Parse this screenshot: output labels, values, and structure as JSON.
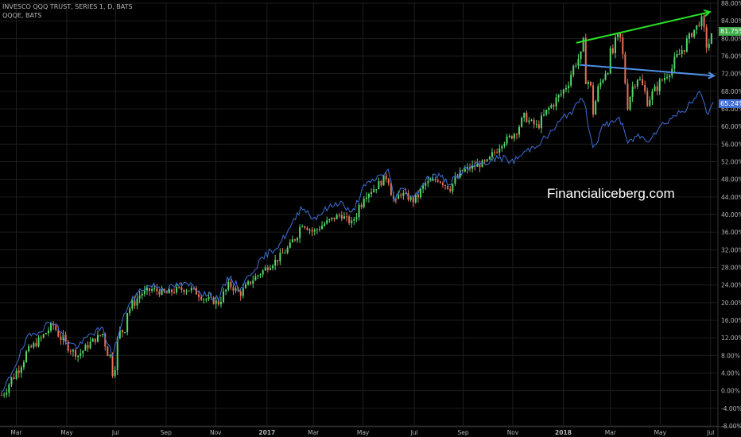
{
  "legend": {
    "main": "INVESCO QQQ TRUST, SERIES 1, D, BATS",
    "compare": "QQQE, BATS"
  },
  "watermark": "Financialiceberg.com",
  "last_values": {
    "main": "81.75%",
    "compare": "65.24%"
  },
  "colors": {
    "background": "#000000",
    "grid": "#1e1e1e",
    "up_candle": "#53d769",
    "down_candle": "#e8705a",
    "compare_line": "#3f6fd6",
    "trend_upper": "#27e227",
    "trend_lower": "#4f8fe6",
    "axis_text": "#b3b3b3",
    "main_badge": "#3fae4a",
    "compare_badge": "#3f6fd6"
  },
  "chart_data": {
    "type": "line",
    "title": "",
    "ylabel": "",
    "ylim": [
      -8,
      88
    ],
    "y_ticks": [
      "88.00%",
      "84.00%",
      "80.00%",
      "76.00%",
      "72.00%",
      "68.00%",
      "64.00%",
      "60.00%",
      "56.00%",
      "52.00%",
      "48.00%",
      "44.00%",
      "40.00%",
      "36.00%",
      "32.00%",
      "28.00%",
      "24.00%",
      "20.00%",
      "16.00%",
      "12.00%",
      "8.00%",
      "4.00%",
      "0.00%",
      "-4.00%",
      "-8.00%"
    ],
    "x_ticks": [
      "Mar",
      "May",
      "Jul",
      "Sep",
      "Nov",
      "2017",
      "Mar",
      "May",
      "Jul",
      "Sep",
      "Nov",
      "2018",
      "Mar",
      "May",
      "Jul"
    ],
    "x_tick_dates": [
      "2016-03-01",
      "2016-05-02",
      "2016-07-01",
      "2016-09-01",
      "2016-11-01",
      "2017-01-03",
      "2017-03-01",
      "2017-05-01",
      "2017-07-03",
      "2017-09-01",
      "2017-11-01",
      "2018-01-02",
      "2018-03-01",
      "2018-05-01",
      "2018-07-02"
    ],
    "series": [
      {
        "name": "INVESCO QQQ TRUST, SERIES 1",
        "style": "candles",
        "x": [
          "2016-02-12",
          "2016-02-29",
          "2016-03-15",
          "2016-04-01",
          "2016-04-15",
          "2016-05-02",
          "2016-05-16",
          "2016-06-01",
          "2016-06-15",
          "2016-06-27",
          "2016-07-15",
          "2016-08-01",
          "2016-08-15",
          "2016-09-01",
          "2016-09-15",
          "2016-10-03",
          "2016-10-17",
          "2016-11-04",
          "2016-11-18",
          "2016-12-01",
          "2016-12-15",
          "2017-01-03",
          "2017-01-17",
          "2017-02-01",
          "2017-02-15",
          "2017-03-01",
          "2017-03-15",
          "2017-04-03",
          "2017-04-17",
          "2017-05-01",
          "2017-05-15",
          "2017-06-01",
          "2017-06-09",
          "2017-06-15",
          "2017-07-03",
          "2017-07-17",
          "2017-08-01",
          "2017-08-15",
          "2017-09-01",
          "2017-09-15",
          "2017-10-02",
          "2017-10-16",
          "2017-11-01",
          "2017-11-15",
          "2017-12-01",
          "2017-12-15",
          "2018-01-02",
          "2018-01-16",
          "2018-01-26",
          "2018-02-08",
          "2018-02-20",
          "2018-03-12",
          "2018-03-23",
          "2018-04-02",
          "2018-04-16",
          "2018-05-01",
          "2018-05-15",
          "2018-06-01",
          "2018-06-12",
          "2018-06-20",
          "2018-06-28",
          "2018-07-06"
        ],
        "values": [
          -1,
          4,
          9,
          12,
          15,
          10,
          8,
          11,
          13,
          6,
          18,
          22,
          23,
          22,
          23,
          23,
          21,
          20,
          24,
          22,
          25,
          28,
          30,
          33,
          38,
          36,
          38,
          40,
          38,
          44,
          46,
          49,
          42,
          45,
          43,
          47,
          48,
          46,
          50,
          51,
          52,
          56,
          58,
          62,
          60,
          64,
          68,
          74,
          77,
          64,
          72,
          80,
          66,
          72,
          66,
          70,
          73,
          79,
          82,
          84,
          78,
          81.75
        ],
        "color_up": "#53d769",
        "color_down": "#e8705a"
      },
      {
        "name": "QQQE",
        "style": "line",
        "x": [
          "2016-02-12",
          "2016-02-29",
          "2016-03-15",
          "2016-04-01",
          "2016-04-15",
          "2016-05-02",
          "2016-05-16",
          "2016-06-01",
          "2016-06-15",
          "2016-06-27",
          "2016-07-15",
          "2016-08-01",
          "2016-08-15",
          "2016-09-01",
          "2016-09-15",
          "2016-10-03",
          "2016-10-17",
          "2016-11-04",
          "2016-11-18",
          "2016-12-01",
          "2016-12-15",
          "2017-01-03",
          "2017-01-17",
          "2017-02-01",
          "2017-02-15",
          "2017-03-01",
          "2017-03-15",
          "2017-04-03",
          "2017-04-17",
          "2017-05-01",
          "2017-05-15",
          "2017-06-01",
          "2017-06-09",
          "2017-06-15",
          "2017-07-03",
          "2017-07-17",
          "2017-08-01",
          "2017-08-15",
          "2017-09-01",
          "2017-09-15",
          "2017-10-02",
          "2017-10-16",
          "2017-11-01",
          "2017-11-15",
          "2017-12-01",
          "2017-12-15",
          "2018-01-02",
          "2018-01-16",
          "2018-01-26",
          "2018-02-08",
          "2018-02-20",
          "2018-03-12",
          "2018-03-23",
          "2018-04-02",
          "2018-04-16",
          "2018-05-01",
          "2018-05-15",
          "2018-06-01",
          "2018-06-12",
          "2018-06-20",
          "2018-06-28",
          "2018-07-06"
        ],
        "values": [
          -1,
          6,
          12,
          14,
          16,
          11,
          10,
          13,
          14,
          8,
          19,
          23,
          24,
          23,
          24,
          24,
          22,
          21,
          26,
          23,
          27,
          31,
          33,
          37,
          42,
          39,
          41,
          43,
          40,
          46,
          48,
          50,
          43,
          46,
          44,
          48,
          49,
          47,
          50,
          51,
          52,
          53,
          52,
          54,
          56,
          58,
          62,
          64,
          67,
          55,
          60,
          62,
          56,
          58,
          57,
          60,
          62,
          64,
          66,
          68,
          63,
          65.24
        ],
        "color": "#3f6fd6"
      }
    ],
    "annotations": [
      {
        "type": "trend-arrow",
        "from_date": "2018-01-18",
        "from_y": 79,
        "to_date": "2018-07-01",
        "to_y": 86,
        "color": "#27e227"
      },
      {
        "type": "trend-arrow",
        "from_date": "2018-01-22",
        "from_y": 74,
        "to_date": "2018-07-06",
        "to_y": 71.5,
        "color": "#4f8fe6"
      }
    ],
    "grid": true,
    "legend_position": "top-left"
  }
}
